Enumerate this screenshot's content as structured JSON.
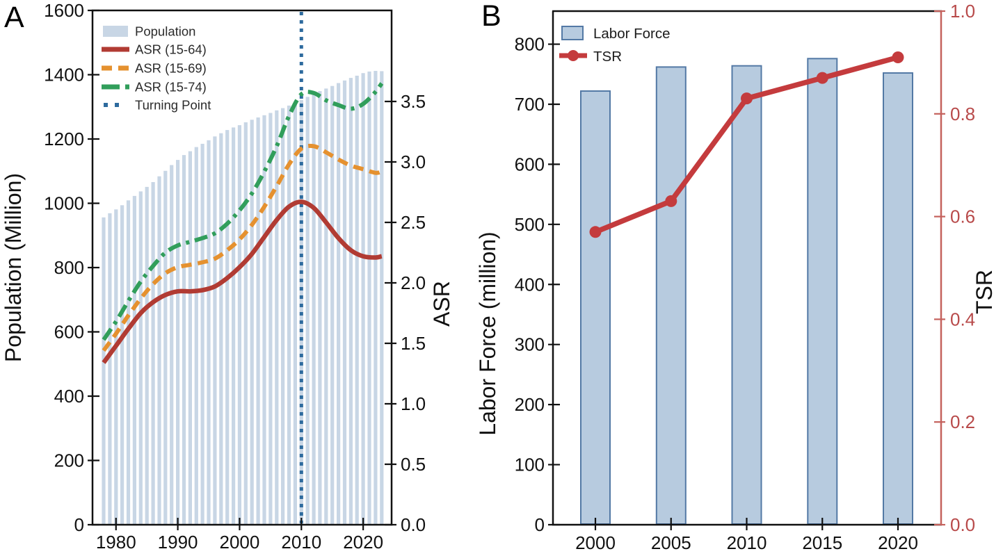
{
  "panels": {
    "a": {
      "label": "A"
    },
    "b": {
      "label": "B"
    }
  },
  "chart_data": [
    {
      "id": "population-asr",
      "panel": "A",
      "type": "bar+line",
      "title": "",
      "xlabel": "",
      "ylabel_left": "Population (Million)",
      "ylabel_right": "ASR",
      "xlim": [
        1976.2,
        2024.6
      ],
      "x_ticks": [
        1980,
        1990,
        2000,
        2010,
        2020
      ],
      "ylim_left": [
        0,
        1600
      ],
      "yticks_left": [
        0,
        200,
        400,
        600,
        800,
        1000,
        1200,
        1400,
        1600
      ],
      "ylim_right": [
        0,
        4.253
      ],
      "yticks_right": [
        0.0,
        0.5,
        1.0,
        1.5,
        2.0,
        2.5,
        3.0,
        3.5
      ],
      "legend": [
        "Population",
        "ASR (15-64)",
        "ASR (15-69)",
        "ASR (15-74)",
        "Turning Point"
      ],
      "bars": {
        "label": "Population",
        "color": "#c8d6e5",
        "years": [
          1978,
          1979,
          1980,
          1981,
          1982,
          1983,
          1984,
          1985,
          1986,
          1987,
          1988,
          1989,
          1990,
          1991,
          1992,
          1993,
          1994,
          1995,
          1996,
          1997,
          1998,
          1999,
          2000,
          2001,
          2002,
          2003,
          2004,
          2005,
          2006,
          2007,
          2008,
          2009,
          2010,
          2011,
          2012,
          2013,
          2014,
          2015,
          2016,
          2017,
          2018,
          2019,
          2020,
          2021,
          2022,
          2023
        ],
        "values": [
          956,
          969,
          981,
          994,
          1009,
          1023,
          1037,
          1051,
          1066,
          1084,
          1101,
          1119,
          1135,
          1150,
          1162,
          1175,
          1185,
          1196,
          1208,
          1218,
          1228,
          1236,
          1243,
          1252,
          1260,
          1267,
          1274,
          1281,
          1289,
          1296,
          1304,
          1312,
          1321,
          1331,
          1340,
          1349,
          1357,
          1365,
          1374,
          1382,
          1390,
          1397,
          1405,
          1410,
          1412,
          1411
        ]
      },
      "series": [
        {
          "label": "ASR (15-64)",
          "color": "#b13b33",
          "style": "solid",
          "x": [
            1978,
            1980,
            1982,
            1984,
            1986,
            1988,
            1990,
            1992,
            1994,
            1996,
            1998,
            2000,
            2002,
            2004,
            2006,
            2008,
            2010,
            2012,
            2014,
            2016,
            2018,
            2020,
            2022,
            2023
          ],
          "y": [
            1.34,
            1.48,
            1.62,
            1.75,
            1.84,
            1.9,
            1.93,
            1.93,
            1.94,
            1.97,
            2.04,
            2.13,
            2.24,
            2.38,
            2.52,
            2.63,
            2.67,
            2.62,
            2.5,
            2.37,
            2.27,
            2.22,
            2.21,
            2.22
          ]
        },
        {
          "label": "ASR (15-69)",
          "color": "#e5912f",
          "style": "dashed",
          "x": [
            1978,
            1980,
            1982,
            1984,
            1986,
            1988,
            1990,
            1992,
            1994,
            1996,
            1998,
            2000,
            2002,
            2004,
            2006,
            2008,
            2010,
            2012,
            2014,
            2016,
            2018,
            2020,
            2022,
            2023
          ],
          "y": [
            1.44,
            1.58,
            1.73,
            1.87,
            1.99,
            2.08,
            2.13,
            2.15,
            2.17,
            2.2,
            2.27,
            2.36,
            2.48,
            2.63,
            2.8,
            2.98,
            3.11,
            3.13,
            3.08,
            3.02,
            2.97,
            2.94,
            2.91,
            2.92
          ]
        },
        {
          "label": "ASR (15-74)",
          "color": "#319e5b",
          "style": "dashdot",
          "x": [
            1978,
            1980,
            1982,
            1984,
            1986,
            1988,
            1990,
            1992,
            1994,
            1996,
            1998,
            2000,
            2002,
            2004,
            2006,
            2008,
            2010,
            2012,
            2014,
            2016,
            2018,
            2020,
            2022,
            2023
          ],
          "y": [
            1.53,
            1.68,
            1.85,
            2.01,
            2.14,
            2.25,
            2.31,
            2.34,
            2.37,
            2.41,
            2.49,
            2.6,
            2.74,
            2.92,
            3.13,
            3.38,
            3.56,
            3.57,
            3.51,
            3.47,
            3.44,
            3.48,
            3.58,
            3.65
          ]
        }
      ],
      "vline": {
        "label": "Turning Point",
        "x": 2010,
        "color": "#2e6b9e",
        "style": "dotted"
      }
    },
    {
      "id": "laborforce-tsr",
      "panel": "B",
      "type": "bar+line",
      "title": "",
      "xlabel": "",
      "ylabel_left": "Labor Force (million)",
      "ylabel_right": "TSR",
      "categories": [
        "2000",
        "2005",
        "2010",
        "2015",
        "2020"
      ],
      "ylim_left": [
        0,
        855
      ],
      "yticks_left": [
        0,
        100,
        200,
        300,
        400,
        500,
        600,
        700,
        800
      ],
      "ylim_right": [
        0,
        1.0
      ],
      "yticks_right": [
        0.0,
        0.2,
        0.4,
        0.6,
        0.8,
        1.0
      ],
      "legend": [
        "Labor Force",
        "TSR"
      ],
      "bars": {
        "label": "Labor Force",
        "color": "#b7cbdf",
        "edge_color": "#5379a5",
        "values": [
          722,
          762,
          764,
          776,
          752
        ]
      },
      "line": {
        "label": "TSR",
        "color": "#c43b3d",
        "values": [
          0.57,
          0.63,
          0.83,
          0.87,
          0.91
        ]
      },
      "right_axis_color": "#c4615c",
      "right_tick_label_color": "#b84a4a"
    }
  ]
}
